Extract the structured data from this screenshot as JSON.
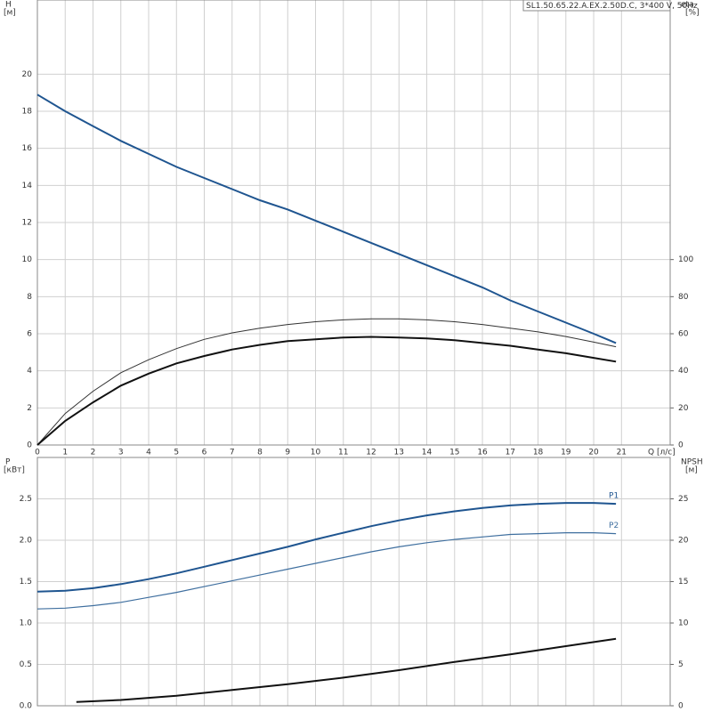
{
  "chart_data": [
    {
      "type": "line",
      "title": "SL1.50.65.22.A.EX.2.50D.C, 3*400 V, 50Hz",
      "ylabel": "H",
      "yunit": "[м]",
      "y2label": "eta",
      "y2unit": "[%]",
      "xlabel": "Q [л/с]",
      "xlim": [
        0,
        22.75
      ],
      "xticks": [
        0,
        1,
        2,
        3,
        4,
        5,
        6,
        7,
        8,
        9,
        10,
        11,
        12,
        13,
        14,
        15,
        16,
        17,
        18,
        19,
        20,
        21
      ],
      "ylim": [
        0,
        24
      ],
      "yticks": [
        0,
        2,
        4,
        6,
        8,
        10,
        12,
        14,
        16,
        18,
        20
      ],
      "y2lim": [
        0,
        240
      ],
      "y2ticks": [
        0,
        20,
        40,
        60,
        80,
        100
      ],
      "grid": true,
      "x": [
        0,
        1,
        2,
        3,
        4,
        5,
        6,
        7,
        8,
        9,
        10,
        11,
        12,
        13,
        14,
        15,
        16,
        17,
        18,
        19,
        20,
        20.8
      ],
      "series": [
        {
          "color": "#1f5590",
          "width": 2,
          "values": [
            18.9,
            18.0,
            17.2,
            16.4,
            15.7,
            15.0,
            14.4,
            13.8,
            13.2,
            12.7,
            12.1,
            11.5,
            10.9,
            10.3,
            9.7,
            9.1,
            8.5,
            7.8,
            7.2,
            6.6,
            6.0,
            5.5
          ]
        },
        {
          "color": "#333333",
          "width": 1,
          "axis": "y2",
          "values": [
            0,
            17,
            29,
            39,
            46,
            52,
            57,
            60.5,
            63,
            65,
            66.5,
            67.5,
            68,
            68,
            67.5,
            66.5,
            65,
            63,
            61,
            58.5,
            55.5,
            53
          ]
        },
        {
          "color": "#111111",
          "width": 2,
          "axis": "y2",
          "values": [
            0,
            13,
            23,
            32,
            38.5,
            44,
            48,
            51.5,
            54,
            56,
            57,
            58,
            58.3,
            58,
            57.5,
            56.5,
            55,
            53.5,
            51.5,
            49.5,
            47,
            45
          ]
        }
      ]
    },
    {
      "type": "line",
      "ylabel": "P",
      "yunit": "[кВт]",
      "y2label": "NPSH",
      "y2unit": "[м]",
      "xlim": [
        0,
        22.75
      ],
      "xticks": [
        0,
        1,
        2,
        3,
        4,
        5,
        6,
        7,
        8,
        9,
        10,
        11,
        12,
        13,
        14,
        15,
        16,
        17,
        18,
        19,
        20,
        21
      ],
      "ylim": [
        0,
        3.0
      ],
      "yticks": [
        {
          "value": 0,
          "label": "0.0"
        },
        0.5,
        {
          "value": 1,
          "label": "1.0"
        },
        1.5,
        {
          "value": 2,
          "label": "2.0"
        },
        2.5
      ],
      "y2lim": [
        0,
        30
      ],
      "y2ticks": [
        0,
        5,
        10,
        15,
        20,
        25
      ],
      "grid": true,
      "x": [
        0,
        1,
        2,
        3,
        4,
        5,
        6,
        7,
        8,
        9,
        10,
        11,
        12,
        13,
        14,
        15,
        16,
        17,
        18,
        19,
        20,
        20.8
      ],
      "series": [
        {
          "name": "P1",
          "color": "#1f5590",
          "width": 2,
          "values": [
            1.38,
            1.39,
            1.42,
            1.47,
            1.53,
            1.6,
            1.68,
            1.76,
            1.84,
            1.92,
            2.01,
            2.09,
            2.17,
            2.24,
            2.3,
            2.35,
            2.39,
            2.42,
            2.44,
            2.45,
            2.45,
            2.44
          ]
        },
        {
          "name": "P2",
          "color": "#3f6f9f",
          "width": 1.2,
          "values": [
            1.17,
            1.18,
            1.21,
            1.25,
            1.31,
            1.37,
            1.44,
            1.51,
            1.58,
            1.65,
            1.72,
            1.79,
            1.86,
            1.92,
            1.97,
            2.01,
            2.04,
            2.07,
            2.08,
            2.09,
            2.09,
            2.08
          ]
        },
        {
          "color": "#111111",
          "width": 2,
          "axis": "y2",
          "x": [
            1.4,
            3,
            5,
            7,
            9,
            11,
            13,
            15,
            17,
            19,
            20.8
          ],
          "values": [
            0.45,
            0.7,
            1.2,
            1.9,
            2.6,
            3.4,
            4.3,
            5.3,
            6.2,
            7.2,
            8.1
          ]
        }
      ]
    }
  ]
}
